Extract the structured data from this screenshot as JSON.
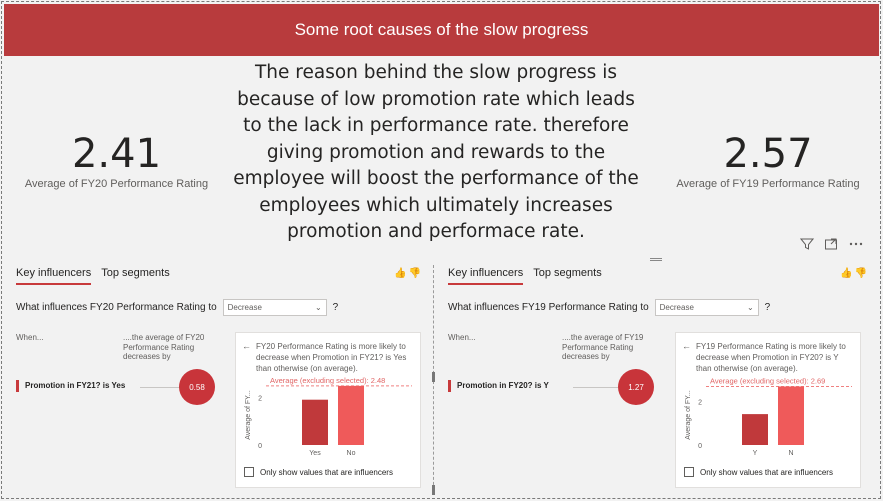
{
  "banner": {
    "title": "Some root causes of the slow progress"
  },
  "cards": {
    "left": {
      "value": "2.41",
      "label": "Average of FY20 Performance Rating"
    },
    "right": {
      "value": "2.57",
      "label": "Average of FY19 Performance Rating"
    }
  },
  "paragraph": "The reason behind the slow progress is because of  low promotion rate which leads to the lack in performance rate. therefore giving promotion and rewards to the employee will boost the performance of the employees which ultimately increases promotion and performace rate.",
  "visual_icons": [
    "filter-icon",
    "focus-mode-icon",
    "more-options-icon"
  ],
  "panels": [
    {
      "tabs": [
        "Key influencers",
        "Top segments"
      ],
      "active_tab": 0,
      "question": "What influences FY20 Performance Rating to",
      "dropdown_value": "Decrease",
      "help": "?",
      "when_label": "When...",
      "avg_header": "....the average of FY20 Performance Rating decreases by",
      "factor": "Promotion in FY21? is Yes",
      "bubble_value": "0.58",
      "detail": {
        "back": "←",
        "text": "FY20 Performance Rating is more likely to decrease when Promotion in FY21? is Yes than otherwise (on average).",
        "avg_label": "Average (excluding selected): 2.48",
        "y_axis_label": "Average of FY...",
        "checkbox_label": "Only show values that are influencers"
      },
      "chart_data": {
        "type": "bar",
        "categories": [
          "Yes",
          "No"
        ],
        "values": [
          1.9,
          2.48
        ],
        "highlighted": "Yes",
        "reference_line": 2.48,
        "ylim": [
          0,
          2.6
        ],
        "yticks": [
          0,
          2
        ],
        "ylabel": "Average of FY...",
        "colors": {
          "selected": "#c0393b",
          "other": "#ef5a5a"
        }
      }
    },
    {
      "tabs": [
        "Key influencers",
        "Top segments"
      ],
      "active_tab": 0,
      "question": "What influences FY19 Performance Rating to",
      "dropdown_value": "Decrease",
      "help": "?",
      "when_label": "When...",
      "avg_header": "....the average of FY19 Performance Rating decreases by",
      "factor": "Promotion in FY20? is Y",
      "bubble_value": "1.27",
      "detail": {
        "back": "←",
        "text": "FY19 Performance Rating is more likely to decrease when Promotion in FY20? is Y than otherwise (on average).",
        "avg_label": "Average (excluding selected): 2.69",
        "y_axis_label": "Average of FY...",
        "checkbox_label": "Only show values that are influencers"
      },
      "chart_data": {
        "type": "bar",
        "categories": [
          "Y",
          "N"
        ],
        "values": [
          1.42,
          2.69
        ],
        "highlighted": "Y",
        "reference_line": 2.69,
        "ylim": [
          0,
          2.85
        ],
        "yticks": [
          0,
          2
        ],
        "ylabel": "Average of FY...",
        "colors": {
          "selected": "#c0393b",
          "other": "#ef5a5a"
        }
      }
    }
  ]
}
